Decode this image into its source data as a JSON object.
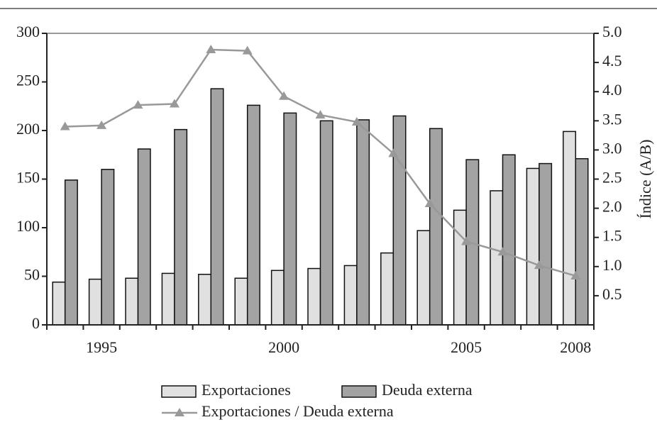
{
  "chart_data": {
    "type": "bar_line",
    "categories": [
      null,
      "1995",
      null,
      null,
      null,
      null,
      "2000",
      null,
      null,
      null,
      null,
      "2005",
      null,
      null,
      "2008"
    ],
    "series": [
      {
        "name": "Exportaciones",
        "color": "#e0e0e0",
        "values": [
          44,
          47,
          48,
          53,
          52,
          48,
          56,
          58,
          61,
          74,
          97,
          118,
          138,
          161,
          199
        ]
      },
      {
        "name": "Deuda externa",
        "color": "#a3a3a3",
        "values": [
          149,
          160,
          181,
          201,
          243,
          226,
          218,
          210,
          211,
          215,
          202,
          170,
          175,
          166,
          171
        ]
      },
      {
        "name": "Exportaciones / Deuda externa",
        "color": "#999999",
        "axis": "y2",
        "type": "line",
        "values": [
          3.4,
          3.42,
          3.77,
          3.79,
          4.72,
          4.7,
          3.92,
          3.6,
          3.48,
          2.94,
          2.08,
          1.43,
          1.25,
          1.02,
          0.84
        ]
      }
    ],
    "ylim": [
      0,
      300
    ],
    "yticks": [
      0,
      50,
      100,
      150,
      200,
      250,
      300
    ],
    "y2label": "Índice (A/B)",
    "y2lim": [
      0,
      5
    ],
    "y2ticks": [
      0.5,
      {
        "value": 1,
        "label": "1.0"
      },
      1.5,
      {
        "value": 2,
        "label": "2.0"
      },
      2.5,
      {
        "value": 3,
        "label": "3.0"
      },
      3.5,
      {
        "value": 4,
        "label": "4.0"
      },
      4.5,
      {
        "value": 5,
        "label": "5.0"
      }
    ]
  }
}
